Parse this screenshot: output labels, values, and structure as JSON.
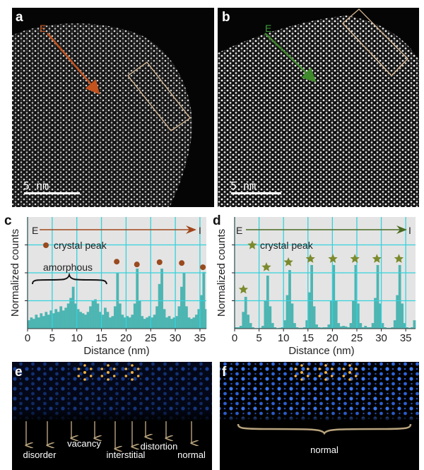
{
  "panels": {
    "a": {
      "label": "a",
      "start_label": "E",
      "scale_bar": "5 nm",
      "arrow_color": "#b5521f"
    },
    "b": {
      "label": "b",
      "start_label": "E",
      "scale_bar": "5 nm",
      "arrow_color": "#3f7a2a"
    },
    "c": {
      "label": "c"
    },
    "d": {
      "label": "d"
    },
    "e": {
      "label": "e",
      "annotations": [
        "disorder",
        "vacancy",
        "interstitial",
        "distortion",
        "normal"
      ]
    },
    "f": {
      "label": "f",
      "annotation": "normal"
    }
  },
  "colors": {
    "plot_bg": "#e4e4e4",
    "grid": "#35d2dc",
    "profile": "#4db5b2",
    "crystal_peak_c": "#9a4a1e",
    "crystal_peak_d": "#7b8a2c",
    "box": "#d8b894",
    "lattice_ef": "#3f7fff",
    "motif": "#f0b040"
  },
  "chart_data": [
    {
      "panel": "c",
      "type": "bar",
      "xlabel": "Distance (nm)",
      "ylabel": "Normalized counts",
      "xlim": [
        0,
        36.3
      ],
      "ylim": [
        0,
        4
      ],
      "xticks": [
        0,
        5,
        10,
        15,
        20,
        25,
        30,
        35
      ],
      "grid": true,
      "direction": {
        "start": "E",
        "end": "I",
        "color": "#a0461c"
      },
      "legend": {
        "marker": "circle",
        "label": "crystal peak",
        "placement": "top-left"
      },
      "annotation": "amorphous",
      "x_step": 0.5,
      "values": [
        0.3,
        0.4,
        0.35,
        0.5,
        0.4,
        0.55,
        0.45,
        0.6,
        0.5,
        0.65,
        0.55,
        0.7,
        0.6,
        0.8,
        0.65,
        0.75,
        0.9,
        1.1,
        1.5,
        0.9,
        0.7,
        0.6,
        0.55,
        0.5,
        0.6,
        0.8,
        1.0,
        1.05,
        0.9,
        0.6,
        0.5,
        0.75,
        0.6,
        0.4,
        0.45,
        0.8,
        2.0,
        0.9,
        0.5,
        0.4,
        0.45,
        0.4,
        0.5,
        0.9,
        2.15,
        1.0,
        0.45,
        0.35,
        0.4,
        0.45,
        0.4,
        0.5,
        0.8,
        1.6,
        2.15,
        0.7,
        0.4,
        0.45,
        0.35,
        0.4,
        0.45,
        0.8,
        1.5,
        2.0,
        0.8,
        0.4,
        0.35,
        0.4,
        0.5,
        0.7,
        1.2,
        2.03,
        0.7,
        0.6
      ],
      "crystal_peaks": [
        {
          "x": 18.1,
          "y": 2.4
        },
        {
          "x": 22.2,
          "y": 2.3
        },
        {
          "x": 26.8,
          "y": 2.38
        },
        {
          "x": 31.3,
          "y": 2.35
        },
        {
          "x": 35.6,
          "y": 2.2
        }
      ]
    },
    {
      "panel": "d",
      "type": "bar",
      "xlabel": "Distance (nm)",
      "ylabel": "Normalized counts",
      "xlim": [
        0,
        37.0
      ],
      "ylim": [
        0,
        4
      ],
      "xticks": [
        0,
        5,
        10,
        15,
        20,
        25,
        30,
        35
      ],
      "grid": true,
      "direction": {
        "start": "E",
        "end": "I",
        "color": "#4a6a22"
      },
      "legend": {
        "marker": "star",
        "label": "crystal peak",
        "placement": "top-left"
      },
      "x_step": 0.5,
      "values": [
        0.05,
        0.05,
        0.1,
        0.6,
        1.14,
        0.5,
        0.2,
        0.05,
        0.02,
        0.02,
        0.03,
        0.1,
        1.0,
        1.9,
        0.8,
        0.2,
        0.05,
        0.02,
        0.03,
        0.05,
        0.3,
        1.2,
        2.1,
        0.9,
        0.2,
        0.05,
        0.03,
        0.03,
        0.05,
        0.3,
        1.3,
        2.28,
        0.8,
        0.15,
        0.05,
        0.04,
        0.05,
        0.05,
        0.15,
        1.0,
        2.28,
        1.0,
        0.2,
        0.08,
        0.1,
        0.08,
        0.05,
        0.2,
        1.0,
        2.28,
        0.9,
        0.2,
        0.05,
        0.1,
        0.05,
        0.05,
        0.2,
        1.1,
        2.28,
        0.9,
        0.2,
        0.05,
        0.03,
        0.03,
        0.05,
        0.3,
        1.2,
        2.28,
        0.9,
        0.2,
        0.05,
        0.03,
        0.05,
        0.3
      ],
      "crystal_peaks": [
        {
          "x": 1.8,
          "y": 1.4
        },
        {
          "x": 6.5,
          "y": 2.2
        },
        {
          "x": 11.0,
          "y": 2.38
        },
        {
          "x": 15.5,
          "y": 2.5
        },
        {
          "x": 20.1,
          "y": 2.5
        },
        {
          "x": 24.6,
          "y": 2.5
        },
        {
          "x": 29.1,
          "y": 2.5
        },
        {
          "x": 33.6,
          "y": 2.5
        }
      ]
    }
  ]
}
